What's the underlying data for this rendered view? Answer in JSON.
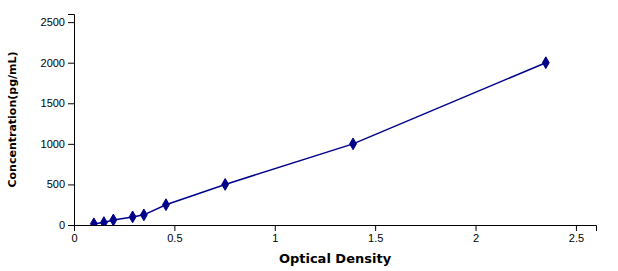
{
  "chart_data": {
    "type": "line",
    "x": [
      0.099,
      0.149,
      0.196,
      0.292,
      0.348,
      0.458,
      0.753,
      1.39,
      2.35
    ],
    "values": [
      15,
      30,
      62,
      100,
      125,
      250,
      500,
      1000,
      2000
    ],
    "color": "#00008B",
    "marker": "diamond",
    "xlabel": "Optical Density",
    "ylabel": "Concentration(pg/mL)",
    "xlim": [
      0.0,
      2.6
    ],
    "ylim": [
      0,
      2600
    ],
    "xticks": [
      0,
      0.5,
      1,
      1.5,
      2,
      2.5
    ],
    "yticks": [
      0,
      500,
      1000,
      1500,
      2000,
      2500
    ]
  }
}
